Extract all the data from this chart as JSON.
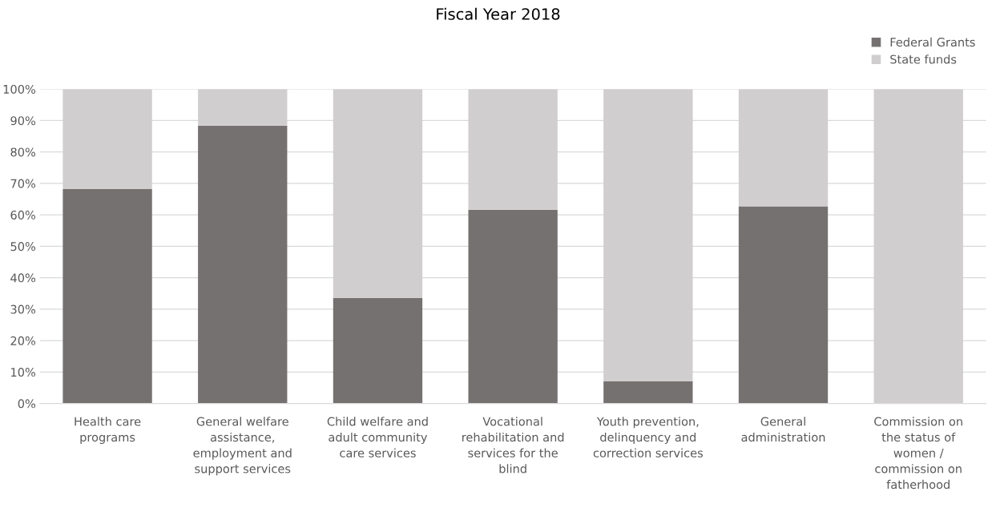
{
  "chart_data": {
    "type": "bar",
    "title": "Fiscal Year 2018",
    "stacked": true,
    "categories": [
      "Health care programs",
      "General welfare assistance, employment and support services",
      "Child welfare and adult community care services",
      "Vocational rehabilitation and services for the blind",
      "Youth prevention, delinquency and correction services",
      "General administration",
      "Commission on the status of women / commission on fatherhood"
    ],
    "series": [
      {
        "name": "Federal Grants",
        "color": "#767171",
        "values": [
          68.2,
          88.4,
          33.6,
          61.6,
          7,
          62.7,
          0
        ]
      },
      {
        "name": "State funds",
        "color": "#d0cece",
        "values": [
          31.8,
          11.6,
          66.4,
          38.4,
          93,
          37.3,
          100
        ]
      }
    ],
    "ylim": [
      0,
      100
    ],
    "yticks": [
      {
        "value": 0,
        "label": "0%"
      },
      {
        "value": 10,
        "label": "10%"
      },
      {
        "value": 20,
        "label": "20%"
      },
      {
        "value": 30,
        "label": "30%"
      },
      {
        "value": 40,
        "label": "40%"
      },
      {
        "value": 50,
        "label": "50%"
      },
      {
        "value": 60,
        "label": "60%"
      },
      {
        "value": 70,
        "label": "70%"
      },
      {
        "value": 80,
        "label": "80%"
      },
      {
        "value": 90,
        "label": "90%"
      },
      {
        "value": 100,
        "label": "100%"
      }
    ],
    "grid": "y",
    "legend": "top right"
  }
}
